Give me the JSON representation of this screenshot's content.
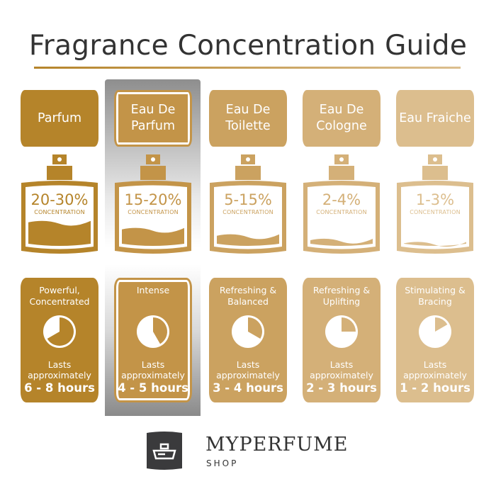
{
  "title": "Fragrance Concentration Guide",
  "concentration_label": "CONCENTRATION",
  "lasts_label": "Lasts approximately",
  "highlighted_index": 1,
  "columns": [
    {
      "name": "Parfum",
      "percent": "20-30%",
      "description": "Powerful, Concentrated",
      "duration": "6 - 8 hours",
      "max_hours": 8,
      "fill_level": 0.38,
      "color": "#b5842a"
    },
    {
      "name": "Eau De Parfum",
      "percent": "15-20%",
      "description": "Intense",
      "duration": "4 - 5 hours",
      "max_hours": 5,
      "fill_level": 0.27,
      "color": "#c39448"
    },
    {
      "name": "Eau De Toilette",
      "percent": "5-15%",
      "description": "Refreshing & Balanced",
      "duration": "3 - 4 hours",
      "max_hours": 4,
      "fill_level": 0.17,
      "color": "#cba260"
    },
    {
      "name": "Eau De Cologne",
      "percent": "2-4%",
      "description": "Refreshing & Uplifting",
      "duration": "2 - 3 hours",
      "max_hours": 3,
      "fill_level": 0.1,
      "color": "#d4b078"
    },
    {
      "name": "Eau Fraiche",
      "percent": "1-3%",
      "description": "Stimulating & Bracing",
      "duration": "1 - 2 hours",
      "max_hours": 2,
      "fill_level": 0.05,
      "color": "#dcbe8e"
    }
  ],
  "logo": {
    "brand": "MYPERFUME",
    "sub": "SHOP",
    "color": "#3a3a3c"
  }
}
